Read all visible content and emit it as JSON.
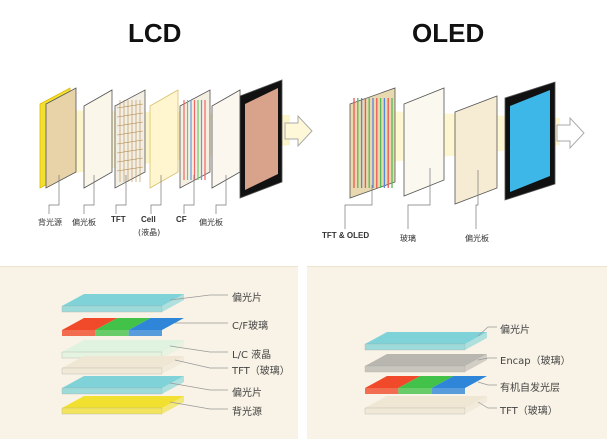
{
  "lcd": {
    "title": "LCD",
    "labels": [
      "背光源",
      "偏光板",
      "TFT",
      "Cell",
      "(液晶)",
      "CF",
      "偏光板"
    ]
  },
  "oled": {
    "title": "OLED",
    "labels": [
      "TFT & OLED",
      "玻璃",
      "偏光板"
    ]
  },
  "lcd_stack": {
    "labels": [
      "偏光片",
      "C/F玻璃",
      "L/C 液晶",
      "TFT（玻璃）",
      "偏光片",
      "背光源"
    ]
  },
  "oled_stack": {
    "labels": [
      "偏光片",
      "Encap（玻璃）",
      "有机自发光层",
      "TFT（玻璃）"
    ]
  },
  "colors": {
    "backlight": "#f2e030",
    "polarizer": "#7fd3d8",
    "red": "#f04a2a",
    "green": "#43c24a",
    "blue": "#2f86d8",
    "glass": "#efe6d4",
    "encap": "#b9b6b0",
    "panel_bg": "#f8f3e6"
  }
}
